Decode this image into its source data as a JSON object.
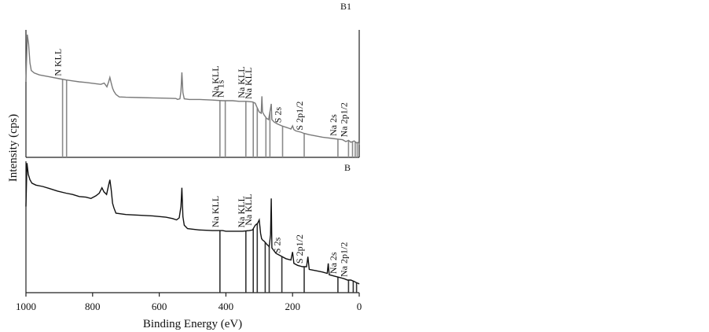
{
  "chart_data": {
    "type": "line",
    "xlabel": "Binding Energy (eV)",
    "ylabel": "Intensity (cps)",
    "xlim": [
      1000,
      0
    ],
    "x_ticks": [
      "1000",
      "800",
      "600",
      "400",
      "200",
      "0"
    ],
    "panels": [
      {
        "label": "B1",
        "color": "#7a7a7a",
        "series": {
          "x": [
            1000,
            996,
            992,
            988,
            984,
            975,
            960,
            930,
            900,
            880,
            860,
            840,
            820,
            790,
            775,
            765,
            757,
            752,
            748,
            744,
            740,
            736,
            730,
            720,
            700,
            660,
            620,
            580,
            550,
            545,
            538,
            535,
            532,
            529,
            525,
            510,
            480,
            440,
            410,
            400,
            380,
            360,
            340,
            320,
            312,
            308,
            300,
            294,
            292,
            290,
            285,
            278,
            272,
            266,
            264,
            262,
            255,
            245,
            232,
            215,
            205,
            200,
            196,
            190,
            175,
            165,
            150,
            130,
            110,
            95,
            80,
            65,
            50,
            40,
            32,
            25,
            15,
            8,
            2,
            0
          ],
          "y": [
            0.2,
            0.95,
            0.8,
            0.5,
            0.38,
            0.34,
            0.31,
            0.28,
            0.25,
            0.23,
            0.215,
            0.2,
            0.19,
            0.17,
            0.16,
            0.18,
            0.12,
            0.2,
            0.27,
            0.18,
            0.1,
            0.05,
            0.0,
            -0.04,
            -0.045,
            -0.05,
            -0.055,
            -0.06,
            -0.065,
            -0.08,
            -0.07,
            0.05,
            0.35,
            0.03,
            -0.07,
            -0.08,
            -0.08,
            -0.09,
            -0.1,
            -0.1,
            -0.1,
            -0.11,
            -0.11,
            -0.12,
            -0.14,
            -0.19,
            -0.28,
            -0.3,
            -0.03,
            -0.28,
            -0.33,
            -0.38,
            -0.4,
            -0.22,
            -0.15,
            -0.4,
            -0.44,
            -0.47,
            -0.5,
            -0.53,
            -0.55,
            -0.5,
            -0.56,
            -0.58,
            -0.6,
            -0.62,
            -0.64,
            -0.66,
            -0.68,
            -0.69,
            -0.7,
            -0.71,
            -0.72,
            -0.75,
            -0.73,
            -0.76,
            -0.74,
            -0.77,
            -0.76,
            -0.8
          ]
        },
        "markers": [
          {
            "x": 890,
            "label": "N KLL"
          },
          {
            "x": 878,
            "label": ""
          },
          {
            "x": 418,
            "label": "Na KLL"
          },
          {
            "x": 402,
            "label": "N 1s"
          },
          {
            "x": 340,
            "label": "Na KLL"
          },
          {
            "x": 318,
            "label": "Na KLL"
          },
          {
            "x": 306,
            "label": ""
          },
          {
            "x": 280,
            "label": ""
          },
          {
            "x": 268,
            "label": ""
          },
          {
            "x": 230,
            "label": "S 2s"
          },
          {
            "x": 165,
            "label": "S 2p1/2"
          },
          {
            "x": 64,
            "label": "Na 2s"
          },
          {
            "x": 32,
            "label": "Na 2p1/2"
          },
          {
            "x": 20,
            "label": ""
          },
          {
            "x": 12,
            "label": ""
          },
          {
            "x": 6,
            "label": ""
          }
        ]
      },
      {
        "label": "B",
        "color": "#111111",
        "series": {
          "x": [
            1000,
            997,
            993,
            988,
            982,
            970,
            950,
            930,
            905,
            880,
            860,
            840,
            820,
            805,
            790,
            780,
            772,
            766,
            758,
            752,
            748,
            744,
            740,
            736,
            730,
            700,
            660,
            620,
            580,
            560,
            548,
            540,
            535,
            532,
            529,
            525,
            515,
            480,
            440,
            410,
            400,
            380,
            350,
            330,
            320,
            312,
            305,
            300,
            296,
            293,
            290,
            285,
            278,
            270,
            266,
            264,
            262,
            250,
            235,
            220,
            205,
            200,
            196,
            185,
            170,
            158,
            154,
            150,
            130,
            110,
            96,
            93,
            90,
            75,
            60,
            45,
            35,
            25,
            15,
            8,
            2,
            0
          ],
          "y": [
            0.3,
            0.95,
            0.78,
            0.7,
            0.65,
            0.62,
            0.6,
            0.57,
            0.53,
            0.5,
            0.48,
            0.45,
            0.44,
            0.42,
            0.46,
            0.5,
            0.58,
            0.52,
            0.48,
            0.62,
            0.7,
            0.55,
            0.35,
            0.28,
            0.2,
            0.18,
            0.17,
            0.16,
            0.14,
            0.12,
            0.1,
            0.13,
            0.3,
            0.58,
            0.15,
            0.02,
            -0.03,
            -0.05,
            -0.06,
            -0.06,
            -0.07,
            -0.07,
            -0.07,
            -0.06,
            -0.05,
            0.02,
            0.05,
            0.1,
            -0.1,
            -0.18,
            -0.2,
            -0.22,
            -0.26,
            -0.3,
            -0.12,
            0.42,
            -0.32,
            -0.4,
            -0.44,
            -0.48,
            -0.5,
            -0.38,
            -0.55,
            -0.58,
            -0.6,
            -0.6,
            -0.45,
            -0.64,
            -0.66,
            -0.68,
            -0.7,
            -0.55,
            -0.72,
            -0.74,
            -0.76,
            -0.78,
            -0.8,
            -0.8,
            -0.82,
            -0.84,
            -0.85,
            -0.86
          ]
        },
        "markers": [
          {
            "x": 418,
            "label": "Na KLL"
          },
          {
            "x": 340,
            "label": "Na KLL"
          },
          {
            "x": 318,
            "label": "Na KLL"
          },
          {
            "x": 306,
            "label": ""
          },
          {
            "x": 282,
            "label": ""
          },
          {
            "x": 270,
            "label": ""
          },
          {
            "x": 232,
            "label": "S 2s"
          },
          {
            "x": 165,
            "label": "S 2p1/2"
          },
          {
            "x": 64,
            "label": "Na 2s"
          },
          {
            "x": 32,
            "label": "Na 2p1/2"
          },
          {
            "x": 18,
            "label": ""
          },
          {
            "x": 8,
            "label": ""
          }
        ]
      }
    ]
  }
}
